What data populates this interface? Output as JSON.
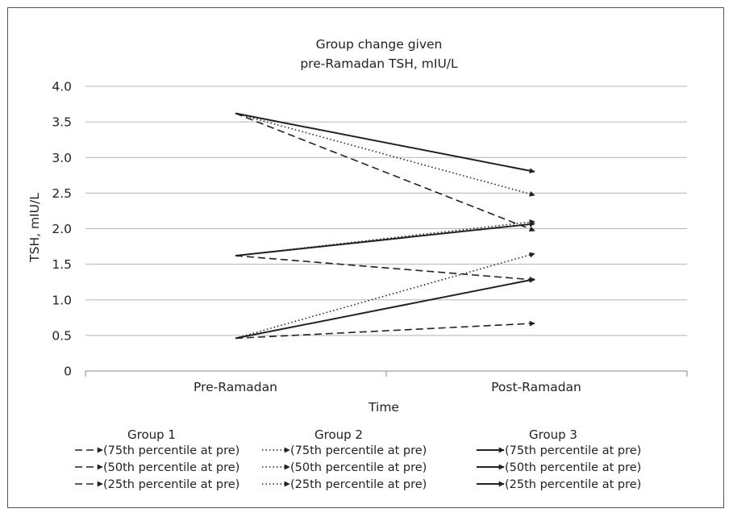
{
  "chart_data": {
    "type": "line",
    "title_lines": [
      "Group change given",
      "pre-Ramadan TSH, mIU/L"
    ],
    "xlabel": "Time",
    "ylabel": "TSH, mIU/L",
    "categories": [
      "Pre-Ramadan",
      "Post-Ramadan"
    ],
    "ylim": [
      0,
      4
    ],
    "yticks": [
      "0",
      "0.5",
      "1.0",
      "1.5",
      "2.0",
      "2.5",
      "3.0",
      "3.5",
      "4.0"
    ],
    "grid": true,
    "legend_position": "bottom",
    "groups": [
      {
        "name": "Group 1",
        "line_style": "dashed",
        "series": [
          {
            "name": "(75th percentile at pre)",
            "values": [
              3.62,
              1.97
            ]
          },
          {
            "name": "(50th percentile at pre)",
            "values": [
              1.62,
              1.28
            ]
          },
          {
            "name": "(25th percentile at pre)",
            "values": [
              0.46,
              0.67
            ]
          }
        ]
      },
      {
        "name": "Group 2",
        "line_style": "dotted",
        "series": [
          {
            "name": "(75th percentile at pre)",
            "values": [
              3.62,
              2.47
            ]
          },
          {
            "name": "(50th percentile at pre)",
            "values": [
              1.62,
              2.1
            ]
          },
          {
            "name": "(25th percentile at pre)",
            "values": [
              0.46,
              1.65
            ]
          }
        ]
      },
      {
        "name": "Group 3",
        "line_style": "solid",
        "series": [
          {
            "name": "(75th percentile at pre)",
            "values": [
              3.62,
              2.8
            ]
          },
          {
            "name": "(50th percentile at pre)",
            "values": [
              1.62,
              2.07
            ]
          },
          {
            "name": "(25th percentile at pre)",
            "values": [
              0.46,
              1.29
            ]
          }
        ]
      }
    ]
  }
}
